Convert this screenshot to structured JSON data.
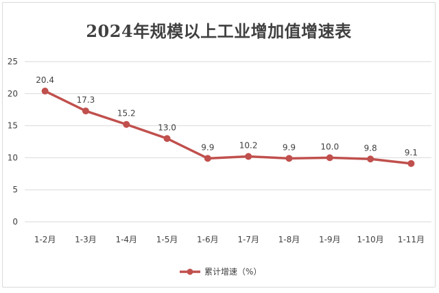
{
  "chart_data": {
    "type": "line",
    "title": "2024年规模以上工业增加值增速表",
    "categories": [
      "1-2月",
      "1-3月",
      "1-4月",
      "1-5月",
      "1-6月",
      "1-7月",
      "1-8月",
      "1-9月",
      "1-10月",
      "1-11月"
    ],
    "series": [
      {
        "name": "累计增速（%）",
        "values": [
          20.4,
          17.3,
          15.2,
          13.0,
          9.9,
          10.2,
          9.9,
          10.0,
          9.8,
          9.1
        ],
        "value_labels": [
          "20.4",
          "17.3",
          "15.2",
          "13.0",
          "9.9",
          "10.2",
          "9.9",
          "10.0",
          "9.8",
          "9.1"
        ],
        "color": "#c0504d"
      }
    ],
    "y_ticks": [
      "0",
      "5",
      "10",
      "15",
      "20",
      "25"
    ],
    "ylim": [
      0,
      25
    ],
    "grid": true,
    "gridline_color": "#d9d9d9",
    "legend_position": "bottom",
    "marker": "circle"
  }
}
